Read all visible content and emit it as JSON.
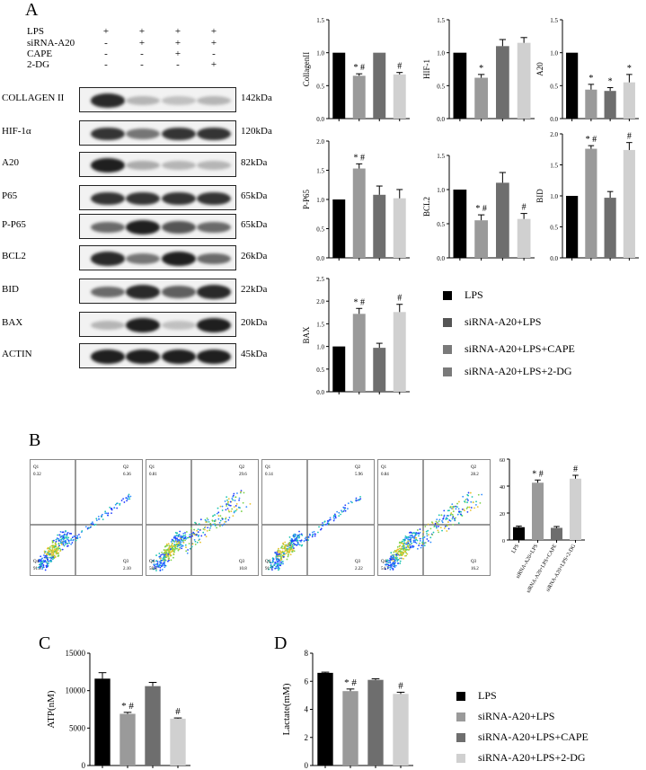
{
  "panel_letters": {
    "a": "A",
    "b": "B",
    "c": "C",
    "d": "D"
  },
  "treatments": {
    "rows": [
      {
        "label": "LPS",
        "marks": [
          "+",
          "+",
          "+",
          "+"
        ]
      },
      {
        "label": "siRNA-A20",
        "marks": [
          "-",
          "+",
          "+",
          "+"
        ]
      },
      {
        "label": "CAPE",
        "marks": [
          "-",
          "-",
          "+",
          "-"
        ]
      },
      {
        "label": "2-DG",
        "marks": [
          "-",
          "-",
          "-",
          "+"
        ]
      }
    ]
  },
  "blots": [
    {
      "name": "COLLAGEN II",
      "kda": "142kDa",
      "intensity": [
        0.9,
        0.25,
        0.2,
        0.25
      ]
    },
    {
      "name": "HIF-1α",
      "kda": "120kDa",
      "intensity": [
        0.85,
        0.55,
        0.85,
        0.85
      ]
    },
    {
      "name": "A20",
      "kda": "82kDa",
      "intensity": [
        0.95,
        0.3,
        0.25,
        0.25
      ]
    },
    {
      "name": "P65",
      "kda": "65kDa",
      "intensity": [
        0.85,
        0.85,
        0.85,
        0.85
      ]
    },
    {
      "name": "P-P65",
      "kda": "65kDa",
      "intensity": [
        0.6,
        0.95,
        0.7,
        0.6
      ]
    },
    {
      "name": "BCL2",
      "kda": "26kDa",
      "intensity": [
        0.9,
        0.55,
        0.95,
        0.6
      ]
    },
    {
      "name": "BID",
      "kda": "22kDa",
      "intensity": [
        0.6,
        0.9,
        0.65,
        0.9
      ]
    },
    {
      "name": "BAX",
      "kda": "20kDa",
      "intensity": [
        0.25,
        0.95,
        0.2,
        0.95
      ]
    },
    {
      "name": "ACTIN",
      "kda": "45kDa",
      "intensity": [
        0.95,
        0.95,
        0.95,
        0.95
      ]
    }
  ],
  "colors": {
    "LPS": "#000000",
    "siRNA-A20+LPS": "#9a9a9a",
    "siRNA-A20+LPS+CAPE": "#6e6e6e",
    "siRNA-A20+LPS+2-DG": "#d0d0d0"
  },
  "legend_A": [
    "LPS",
    "siRNA-A20+LPS",
    "siRNA-A20+LPS+CAPE",
    "siRNA-A20+LPS+2-DG"
  ],
  "legend_CD": [
    "LPS",
    "siRNA-A20+LPS",
    "siRNA-A20+LPS+CAPE",
    "siRNA-A20+LPS+2-DG"
  ],
  "flow": [
    {
      "q1": "0.32",
      "q2": "6.36",
      "q3": "2.10",
      "q4": "91.2",
      "density": 0.25
    },
    {
      "q1": "0.81",
      "q2": "29.6",
      "q3": "10.8",
      "q4": "58.8",
      "density": 0.8
    },
    {
      "q1": "0.14",
      "q2": "5.96",
      "q3": "2.22",
      "q4": "91.7",
      "density": 0.25
    },
    {
      "q1": "0.84",
      "q2": "28.2",
      "q3": "16.2",
      "q4": "54.7",
      "density": 0.75
    }
  ],
  "chart_data": [
    {
      "type": "bar",
      "ylabel": "CollagenII",
      "ylim": [
        0,
        1.5
      ],
      "yticks": [
        "0.0",
        "0.5",
        "1.0",
        "1.5"
      ],
      "values": [
        1.0,
        0.65,
        1.0,
        0.67
      ],
      "errors": [
        0,
        0.03,
        0,
        0.03
      ],
      "annotations": [
        "",
        "* #",
        "",
        "#"
      ]
    },
    {
      "type": "bar",
      "ylabel": "HIF-1",
      "ylim": [
        0,
        1.5
      ],
      "yticks": [
        "0.0",
        "0.5",
        "1.0",
        "1.5"
      ],
      "values": [
        1.0,
        0.62,
        1.1,
        1.15
      ],
      "errors": [
        0,
        0.05,
        0.1,
        0.08
      ],
      "annotations": [
        "",
        "*",
        "",
        ""
      ]
    },
    {
      "type": "bar",
      "ylabel": "A20",
      "ylim": [
        0,
        1.5
      ],
      "yticks": [
        "0.0",
        "0.5",
        "1.0",
        "1.5"
      ],
      "values": [
        1.0,
        0.44,
        0.42,
        0.55
      ],
      "errors": [
        0,
        0.08,
        0.05,
        0.12
      ],
      "annotations": [
        "",
        "*",
        "*",
        "*"
      ]
    },
    {
      "type": "bar",
      "ylabel": "P-P65",
      "ylim": [
        0,
        2.0
      ],
      "yticks": [
        "0.0",
        "0.5",
        "1.0",
        "1.5",
        "2.0"
      ],
      "values": [
        1.0,
        1.53,
        1.08,
        1.02
      ],
      "errors": [
        0,
        0.08,
        0.15,
        0.15
      ],
      "annotations": [
        "",
        "* #",
        "",
        ""
      ]
    },
    {
      "type": "bar",
      "ylabel": "BCL2",
      "ylim": [
        0,
        1.5
      ],
      "yticks": [
        "0.0",
        "0.5",
        "1.0",
        "1.5"
      ],
      "values": [
        1.0,
        0.55,
        1.1,
        0.57
      ],
      "errors": [
        0,
        0.08,
        0.15,
        0.08
      ],
      "annotations": [
        "",
        "* #",
        "",
        "#"
      ]
    },
    {
      "type": "bar",
      "ylabel": "BID",
      "ylim": [
        0,
        2.0
      ],
      "yticks": [
        "0.0",
        "0.5",
        "1.0",
        "1.5",
        "2.0"
      ],
      "values": [
        1.0,
        1.76,
        0.97,
        1.74
      ],
      "errors": [
        0,
        0.05,
        0.1,
        0.12
      ],
      "annotations": [
        "",
        "* #",
        "",
        "#"
      ]
    },
    {
      "type": "bar",
      "ylabel": "BAX",
      "ylim": [
        0,
        2.5
      ],
      "yticks": [
        "0.0",
        "0.5",
        "1.0",
        "1.5",
        "2.0",
        "2.5"
      ],
      "values": [
        1.0,
        1.72,
        0.97,
        1.76
      ],
      "errors": [
        0,
        0.12,
        0.1,
        0.17
      ],
      "annotations": [
        "",
        "* #",
        "",
        "#"
      ]
    },
    {
      "type": "bar",
      "ylabel": "",
      "ylim": [
        0,
        60
      ],
      "yticks": [
        "0",
        "20",
        "40",
        "60"
      ],
      "categories": [
        "LPS",
        "siRNA-A20+LPS",
        "siRNA-A20+LPS+CAPE",
        "siRNA-A20+LPS+2-DG"
      ],
      "values": [
        9.5,
        42.5,
        9.0,
        45.5
      ],
      "errors": [
        0.8,
        2.0,
        1.0,
        2.5
      ],
      "annotations": [
        "",
        "* #",
        "",
        "#"
      ]
    },
    {
      "type": "bar",
      "ylabel": "ATP(nM)",
      "ylim": [
        0,
        15000
      ],
      "yticks": [
        "0",
        "5000",
        "10000",
        "15000"
      ],
      "values": [
        11600,
        6900,
        10600,
        6250
      ],
      "errors": [
        800,
        200,
        500,
        100
      ],
      "annotations": [
        "",
        "* #",
        "",
        "#"
      ]
    },
    {
      "type": "bar",
      "ylabel": "Lactate(mM)",
      "ylim": [
        0,
        8
      ],
      "yticks": [
        "0",
        "2",
        "4",
        "6",
        "8"
      ],
      "values": [
        6.6,
        5.3,
        6.1,
        5.1
      ],
      "errors": [
        0.05,
        0.15,
        0.08,
        0.12
      ],
      "annotations": [
        "",
        "* #",
        "",
        "#"
      ]
    }
  ]
}
